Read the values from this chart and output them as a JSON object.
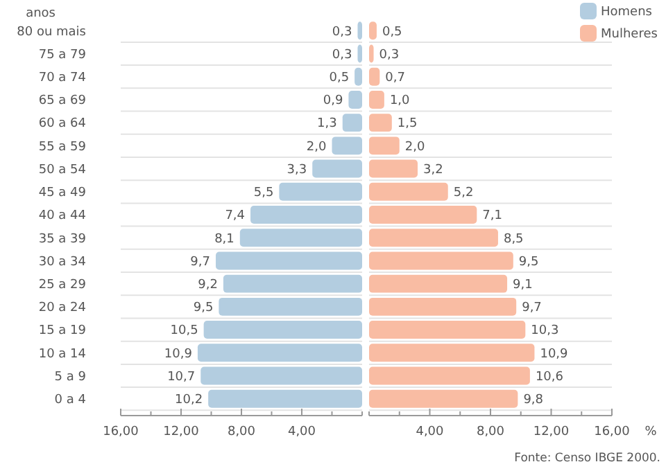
{
  "chart_data": [
    {
      "type": "bar",
      "orientation": "horizontal",
      "ylabel": "anos",
      "categories": [
        "80 ou mais",
        "75 a 79",
        "70 a 74",
        "65 a 69",
        "60 a 64",
        "55 a 59",
        "50 a 54",
        "45 a 49",
        "40 a 44",
        "35 a 39",
        "30 a 34",
        "25 a 29",
        "20 a 24",
        "15 a 19",
        "10 a 14",
        "5 a 9",
        "0 a 4"
      ],
      "series": [
        {
          "name": "Homens",
          "color": "#b3cde0",
          "values": [
            0.3,
            0.3,
            0.5,
            0.9,
            1.3,
            2.0,
            3.3,
            5.5,
            7.4,
            8.1,
            9.7,
            9.2,
            9.5,
            10.5,
            10.9,
            10.7,
            10.2
          ]
        }
      ],
      "value_labels": [
        "0,3",
        "0,3",
        "0,5",
        "0,9",
        "1,3",
        "2,0",
        "3,3",
        "5,5",
        "7,4",
        "8,1",
        "9,7",
        "9,2",
        "9,5",
        "10,5",
        "10,9",
        "10,7",
        "10,2"
      ],
      "xlim": [
        16,
        0
      ],
      "xticks": [
        {
          "value": 16,
          "label": "16,00"
        },
        {
          "value": 14,
          "label": null
        },
        {
          "value": 12,
          "label": "12,00"
        },
        {
          "value": 10,
          "label": null
        },
        {
          "value": 8,
          "label": "8,00"
        },
        {
          "value": 6,
          "label": null
        },
        {
          "value": 4,
          "label": "4,00"
        },
        {
          "value": 2,
          "label": null
        },
        {
          "value": 0,
          "label": null
        }
      ],
      "grid": "y",
      "legend": "top right"
    },
    {
      "type": "bar",
      "orientation": "horizontal",
      "xlabel": "%",
      "categories": [
        null,
        null,
        null,
        null,
        null,
        null,
        null,
        null,
        null,
        null,
        null,
        null,
        null,
        null,
        null,
        null,
        null
      ],
      "series": [
        {
          "name": "Mulheres",
          "color": "#f9bca3",
          "values": [
            0.5,
            0.3,
            0.7,
            1.0,
            1.5,
            2.0,
            3.2,
            5.2,
            7.1,
            8.5,
            9.5,
            9.1,
            9.7,
            10.3,
            10.9,
            10.6,
            9.8
          ]
        }
      ],
      "value_labels": [
        "0,5",
        "0,3",
        "0,7",
        "1,0",
        "1,5",
        "2,0",
        "3,2",
        "5,2",
        "7,1",
        "8,5",
        "9,5",
        "9,1",
        "9,7",
        "10,3",
        "10,9",
        "10,6",
        "9,8"
      ],
      "xlim": [
        0,
        16
      ],
      "xticks": [
        {
          "value": 0,
          "label": null
        },
        {
          "value": 2,
          "label": null
        },
        {
          "value": 4,
          "label": "4,00"
        },
        {
          "value": 6,
          "label": null
        },
        {
          "value": 8,
          "label": "8,00"
        },
        {
          "value": 10,
          "label": null
        },
        {
          "value": 12,
          "label": "12,00"
        },
        {
          "value": 14,
          "label": null
        },
        {
          "value": 16,
          "label": "16,00"
        }
      ],
      "grid": "y",
      "legend": "top right",
      "annotations": [
        "Fonte: Censo IBGE 2000."
      ]
    }
  ]
}
